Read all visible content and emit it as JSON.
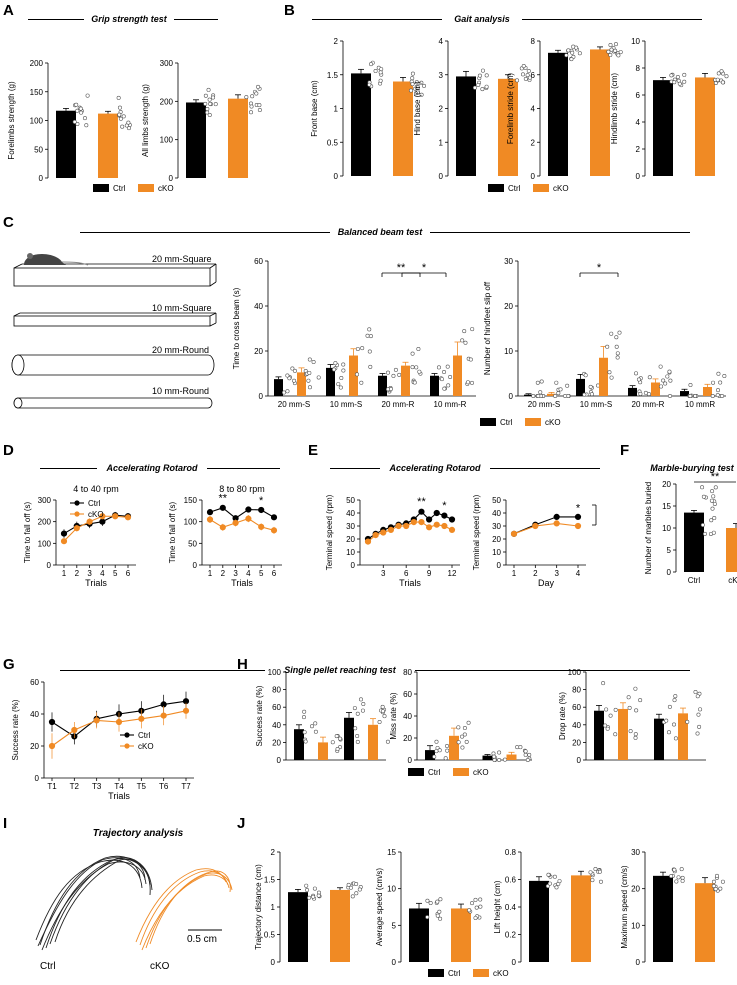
{
  "colors": {
    "ctrl": "#000000",
    "cko": "#F08A24",
    "cko_light": "#F4B57A",
    "gray": "#888888"
  },
  "panel_labels": [
    "A",
    "B",
    "C",
    "D",
    "E",
    "F",
    "G",
    "H",
    "I",
    "J"
  ],
  "titles": {
    "grip": "Grip strength test",
    "gait": "Gait analysis",
    "beam": "Balanced beam test",
    "rotarod_d": "Accelerating Rotarod",
    "rotarod_e": "Accelerating Rotarod",
    "marble": "Marble-burying test",
    "pellet": "Single pellet reaching test",
    "trajectory": "Trajectory analysis"
  },
  "legend": {
    "ctrl": "Ctrl",
    "cko": "cKO"
  },
  "beam_labels": [
    "20 mm-Square",
    "10 mm-Square",
    "20 mm-Round",
    "10 mm-Round"
  ],
  "traj": {
    "ctrl": "Ctrl",
    "cko": "cKO",
    "scale": "0.5 cm"
  },
  "chart_data": [
    {
      "id": "A1",
      "type": "bar",
      "ylabel": "Forelimbs strength (g)",
      "ylim": [
        0,
        200
      ],
      "yticks": [
        0,
        50,
        100,
        150,
        200
      ],
      "values": [
        117,
        112
      ],
      "errors": [
        4,
        4
      ],
      "star": false
    },
    {
      "id": "A2",
      "type": "bar",
      "ylabel": "All limbs strength (g)",
      "ylim": [
        0,
        300
      ],
      "yticks": [
        0,
        100,
        200,
        300
      ],
      "values": [
        197,
        207
      ],
      "errors": [
        7,
        10
      ],
      "star": false
    },
    {
      "id": "B1",
      "type": "bar",
      "ylabel": "Front base (cm)",
      "ylim": [
        0,
        2.0
      ],
      "yticks": [
        0,
        0.5,
        1.0,
        1.5,
        2.0
      ],
      "values": [
        1.52,
        1.4
      ],
      "errors": [
        0.06,
        0.06
      ],
      "star": false
    },
    {
      "id": "B2",
      "type": "bar",
      "ylabel": "Hind base (cm)",
      "ylim": [
        0,
        4
      ],
      "yticks": [
        0,
        1,
        2,
        3,
        4
      ],
      "values": [
        2.95,
        2.88
      ],
      "errors": [
        0.15,
        0.12
      ],
      "star": false
    },
    {
      "id": "B3",
      "type": "bar",
      "ylabel": "Forelimb stride (cm)",
      "ylim": [
        0,
        8
      ],
      "yticks": [
        0,
        2,
        4,
        6,
        8
      ],
      "values": [
        7.3,
        7.5
      ],
      "errors": [
        0.15,
        0.15
      ],
      "star": false
    },
    {
      "id": "B4",
      "type": "bar",
      "ylabel": "Hindlimb stride (cm)",
      "ylim": [
        0,
        10
      ],
      "yticks": [
        0,
        2,
        4,
        6,
        8,
        10
      ],
      "values": [
        7.1,
        7.3
      ],
      "errors": [
        0.2,
        0.3
      ],
      "star": false
    },
    {
      "id": "C1",
      "type": "bar",
      "ylabel": "Time to cross beam (s)",
      "ylim": [
        0,
        60
      ],
      "yticks": [
        0,
        20,
        40,
        60
      ],
      "categories": [
        "20 mm-S",
        "10 mm-S",
        "20 mm-R",
        "10 mm-R"
      ],
      "series": [
        {
          "name": "Ctrl",
          "values": [
            7.5,
            12.5,
            9,
            9
          ],
          "errors": [
            1,
            1.5,
            1,
            1
          ]
        },
        {
          "name": "cKO",
          "values": [
            10.5,
            18,
            13.5,
            18
          ],
          "errors": [
            2,
            3,
            1.5,
            6
          ]
        }
      ],
      "sig": [
        {
          "between": [
            2,
            2
          ],
          "text": "**"
        },
        {
          "between": [
            2,
            3
          ],
          "text": "*"
        }
      ]
    },
    {
      "id": "C2",
      "type": "bar",
      "ylabel": "Number of hindfeet slip off",
      "ylim": [
        0,
        30
      ],
      "yticks": [
        0,
        10,
        20,
        30
      ],
      "categories": [
        "20 mm-S",
        "10 mm-S",
        "20 mm-R",
        "10 mmR"
      ],
      "series": [
        {
          "name": "Ctrl",
          "values": [
            0.3,
            3.8,
            1.8,
            1.1
          ],
          "errors": [
            0.2,
            1,
            0.5,
            0.4
          ]
        },
        {
          "name": "cKO",
          "values": [
            0.5,
            8.5,
            3,
            2
          ],
          "errors": [
            0.3,
            2.5,
            0.8,
            0.6
          ]
        }
      ],
      "sig": [
        {
          "between": [
            1,
            1
          ],
          "text": "*"
        }
      ]
    },
    {
      "id": "D1",
      "type": "line",
      "title": "4 to 40 rpm",
      "xlabel": "Trials",
      "ylabel": "Time to fall off (s)",
      "x": [
        1,
        2,
        3,
        4,
        5,
        6
      ],
      "ylim": [
        0,
        300
      ],
      "yticks": [
        0,
        100,
        200,
        300
      ],
      "series": [
        {
          "name": "Ctrl",
          "values": [
            145,
            180,
            190,
            200,
            230,
            225
          ],
          "errors": [
            20,
            20,
            20,
            20,
            15,
            15
          ]
        },
        {
          "name": "cKO",
          "values": [
            110,
            170,
            200,
            225,
            225,
            220
          ],
          "errors": [
            10,
            15,
            15,
            10,
            10,
            10
          ]
        }
      ],
      "stars": []
    },
    {
      "id": "D2",
      "type": "line",
      "title": "8 to 80 rpm",
      "xlabel": "Trials",
      "ylabel": "Time to fall off (s)",
      "x": [
        1,
        2,
        3,
        4,
        5,
        6
      ],
      "ylim": [
        0,
        150
      ],
      "yticks": [
        0,
        50,
        100,
        150
      ],
      "series": [
        {
          "name": "Ctrl",
          "values": [
            122,
            132,
            108,
            128,
            127,
            110
          ],
          "errors": [
            5,
            5,
            6,
            5,
            5,
            5
          ]
        },
        {
          "name": "cKO",
          "values": [
            105,
            87,
            97,
            107,
            88,
            80
          ],
          "errors": [
            8,
            8,
            8,
            8,
            8,
            8
          ]
        }
      ],
      "stars": [
        {
          "x": 2,
          "text": "**"
        },
        {
          "x": 5,
          "text": "*"
        }
      ]
    },
    {
      "id": "E1",
      "type": "line",
      "xlabel": "Trials",
      "ylabel": "Terminal speed (rpm)",
      "x": [
        1,
        2,
        3,
        4,
        5,
        6,
        7,
        8,
        9,
        10,
        11,
        12
      ],
      "xticks": [
        3,
        6,
        9,
        12
      ],
      "ylim": [
        0,
        50
      ],
      "yticks": [
        0,
        10,
        20,
        30,
        40,
        50
      ],
      "series": [
        {
          "name": "Ctrl",
          "values": [
            20,
            24,
            27,
            29,
            31,
            32,
            35,
            41,
            35,
            40,
            38,
            35
          ],
          "errors": [
            2,
            2,
            2,
            2,
            2,
            2,
            2,
            2,
            2,
            2,
            2,
            2
          ]
        },
        {
          "name": "cKO",
          "values": [
            18,
            23,
            25,
            27,
            30,
            30,
            33,
            33,
            29,
            31,
            30,
            27
          ],
          "errors": [
            2,
            2,
            2,
            2,
            2,
            2,
            2,
            2,
            2,
            2,
            2,
            2
          ]
        }
      ],
      "stars": [
        {
          "x": 8,
          "text": "**"
        },
        {
          "x": 11,
          "text": "*"
        }
      ]
    },
    {
      "id": "E2",
      "type": "line",
      "xlabel": "Day",
      "ylabel": "Terminal speed (rpm)",
      "x": [
        1,
        2,
        3,
        4
      ],
      "ylim": [
        0,
        50
      ],
      "yticks": [
        0,
        10,
        20,
        30,
        40,
        50
      ],
      "series": [
        {
          "name": "Ctrl",
          "values": [
            24,
            31,
            37,
            37
          ],
          "errors": [
            1,
            1,
            1,
            1
          ]
        },
        {
          "name": "cKO",
          "values": [
            24,
            30,
            32,
            30
          ],
          "errors": [
            1,
            1,
            1,
            1
          ]
        }
      ],
      "stars": [
        {
          "x": 4,
          "text": "*"
        }
      ]
    },
    {
      "id": "F1",
      "type": "bar",
      "ylabel": "Number of marbles buried",
      "ylim": [
        0,
        20
      ],
      "yticks": [
        0,
        5,
        10,
        15,
        20
      ],
      "categories": [
        "Ctrl",
        "cKO"
      ],
      "values": [
        13.5,
        10
      ],
      "errors": [
        0.5,
        1
      ],
      "star": true
    },
    {
      "id": "G1",
      "type": "line",
      "xlabel": "Trials",
      "ylabel": "Success rate (%)",
      "x": [
        "T1",
        "T2",
        "T3",
        "T4",
        "T5",
        "T6",
        "T7"
      ],
      "ylim": [
        0,
        60
      ],
      "yticks": [
        0,
        20,
        40,
        60
      ],
      "series": [
        {
          "name": "Ctrl",
          "values": [
            35,
            26,
            37,
            40,
            42,
            46,
            48
          ],
          "errors": [
            6,
            5,
            5,
            6,
            6,
            6,
            6
          ]
        },
        {
          "name": "cKO",
          "values": [
            20,
            30,
            36,
            35,
            37,
            39,
            42
          ],
          "errors": [
            8,
            5,
            5,
            6,
            6,
            6,
            5
          ]
        }
      ],
      "stars": []
    },
    {
      "id": "H1",
      "type": "bar",
      "ylabel": "Success rate (%)",
      "ylim": [
        0,
        100
      ],
      "yticks": [
        0,
        20,
        40,
        60,
        80,
        100
      ],
      "series": [
        {
          "name": "Ctrl",
          "values": [
            35,
            48
          ],
          "errors": [
            5,
            6
          ]
        },
        {
          "name": "cKO",
          "values": [
            20,
            40
          ],
          "errors": [
            6,
            7
          ]
        }
      ]
    },
    {
      "id": "H2",
      "type": "bar",
      "ylabel": "Miss rate (%)",
      "ylim": [
        0,
        80
      ],
      "yticks": [
        0,
        20,
        40,
        60,
        80
      ],
      "series": [
        {
          "name": "Ctrl",
          "values": [
            9,
            4
          ],
          "errors": [
            4,
            1
          ]
        },
        {
          "name": "cKO",
          "values": [
            22,
            5
          ],
          "errors": [
            7,
            2
          ]
        }
      ]
    },
    {
      "id": "H3",
      "type": "bar",
      "ylabel": "Drop rate (%)",
      "ylim": [
        0,
        100
      ],
      "yticks": [
        0,
        20,
        40,
        60,
        80,
        100
      ],
      "series": [
        {
          "name": "Ctrl",
          "values": [
            56,
            47
          ],
          "errors": [
            6,
            5
          ]
        },
        {
          "name": "cKO",
          "values": [
            58,
            53
          ],
          "errors": [
            7,
            6
          ]
        }
      ]
    },
    {
      "id": "J1",
      "type": "bar",
      "ylabel": "Trajectory distance (cm)",
      "ylim": [
        0,
        2.0
      ],
      "yticks": [
        0,
        0.5,
        1.0,
        1.5,
        2.0
      ],
      "values": [
        1.27,
        1.31
      ],
      "errors": [
        0.05,
        0.04
      ],
      "star": false
    },
    {
      "id": "J2",
      "type": "bar",
      "ylabel": "Average speed (cm/s)",
      "ylim": [
        0,
        15
      ],
      "yticks": [
        0,
        5,
        10,
        15
      ],
      "values": [
        7.3,
        7.3
      ],
      "errors": [
        0.7,
        0.6
      ],
      "star": false
    },
    {
      "id": "J3",
      "type": "bar",
      "ylabel": "Lift height (cm)",
      "ylim": [
        0,
        0.8
      ],
      "yticks": [
        0,
        0.2,
        0.4,
        0.6,
        0.8
      ],
      "values": [
        0.59,
        0.63
      ],
      "errors": [
        0.03,
        0.03
      ],
      "star": false
    },
    {
      "id": "J4",
      "type": "bar",
      "ylabel": "Maximum speed (cm/s)",
      "ylim": [
        0,
        30
      ],
      "yticks": [
        0,
        10,
        20,
        30
      ],
      "values": [
        23.5,
        21.5
      ],
      "errors": [
        1,
        1.5
      ],
      "star": false
    }
  ]
}
